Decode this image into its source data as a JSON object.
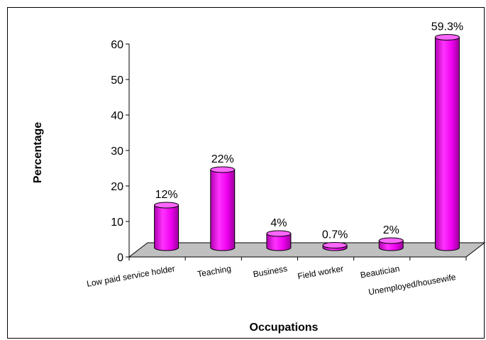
{
  "chart_data": {
    "type": "bar",
    "categories": [
      "Low paid service holder",
      "Teaching",
      "Business",
      "Field worker",
      "Beautician",
      "Unemployed/housewife"
    ],
    "values": [
      12,
      22,
      4,
      0.7,
      2,
      59.3
    ],
    "data_labels": [
      "12%",
      "22%",
      "4%",
      "0.7%",
      "2%",
      "59.3%"
    ],
    "xlabel": "Occupations",
    "ylabel": "Percentage",
    "ylim": [
      0,
      60
    ],
    "yticks": [
      "0",
      "10",
      "20",
      "30",
      "40",
      "50",
      "60"
    ],
    "grid": false,
    "bar_color": "#ff00ff",
    "floor_color": "#c0c0c0"
  }
}
